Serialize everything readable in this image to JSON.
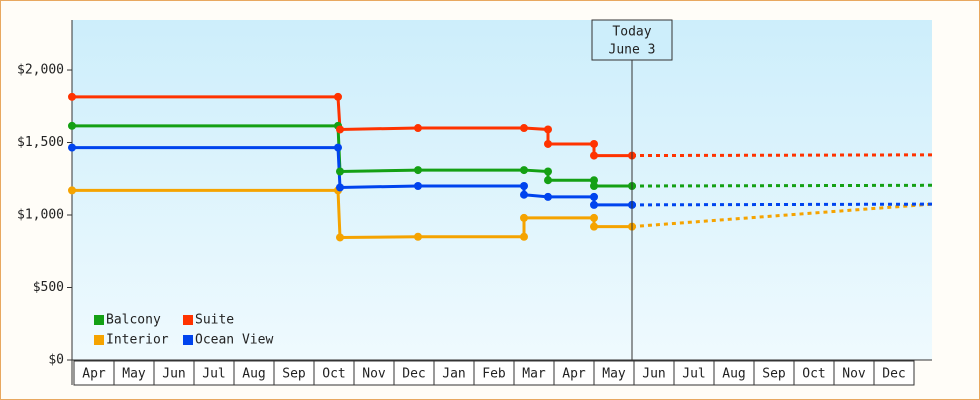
{
  "chart_data": {
    "type": "step-line",
    "categories": [
      "Apr",
      "May",
      "Jun",
      "Jul",
      "Aug",
      "Sep",
      "Oct",
      "Nov",
      "Dec",
      "Jan",
      "Feb",
      "Mar",
      "Apr",
      "May",
      "Jun",
      "Jul",
      "Aug",
      "Sep",
      "Oct",
      "Nov",
      "Dec"
    ],
    "xlim": [
      0,
      21.5
    ],
    "ylim": [
      0,
      2345
    ],
    "yticks": [
      {
        "value": 0,
        "label": "$0"
      },
      {
        "value": 500,
        "label": "$500"
      },
      {
        "value": 1000,
        "label": "$1,000"
      },
      {
        "value": 1500,
        "label": "$1,500"
      },
      {
        "value": 2000,
        "label": "$2,000"
      }
    ],
    "series": [
      {
        "name": "Balcony",
        "color": "#14a014",
        "x": [
          0,
          6.65,
          6.7,
          8.65,
          11.3,
          11.9,
          11.9,
          13.05,
          13.05,
          14
        ],
        "values": [
          1615,
          1615,
          1300,
          1310,
          1310,
          1300,
          1240,
          1240,
          1200,
          1200
        ],
        "forecast": {
          "x": [
            14,
            21.5
          ],
          "values": [
            1200,
            1205
          ]
        }
      },
      {
        "name": "Suite",
        "color": "#ff3300",
        "x": [
          0,
          6.65,
          6.7,
          8.65,
          11.3,
          11.9,
          11.9,
          13.05,
          13.05,
          14
        ],
        "values": [
          1815,
          1815,
          1590,
          1600,
          1600,
          1590,
          1490,
          1490,
          1410,
          1410
        ],
        "forecast": {
          "x": [
            14,
            21.5
          ],
          "values": [
            1410,
            1415
          ]
        }
      },
      {
        "name": "Interior",
        "color": "#f5a300",
        "x": [
          0,
          6.65,
          6.7,
          8.65,
          11.3,
          11.3,
          13.05,
          13.05,
          14
        ],
        "values": [
          1170,
          1170,
          845,
          850,
          850,
          980,
          980,
          920,
          920
        ],
        "forecast": {
          "x": [
            14,
            21.5
          ],
          "values": [
            920,
            1075
          ]
        }
      },
      {
        "name": "Ocean View",
        "color": "#0044ee",
        "x": [
          0,
          6.65,
          6.7,
          8.65,
          11.3,
          11.3,
          11.9,
          13.05,
          13.05,
          14
        ],
        "values": [
          1465,
          1465,
          1190,
          1200,
          1200,
          1140,
          1125,
          1125,
          1070,
          1070
        ],
        "forecast": {
          "x": [
            14,
            21.5
          ],
          "values": [
            1070,
            1075
          ]
        }
      }
    ],
    "annotation": {
      "x": 14,
      "label": [
        "Today",
        "June 3"
      ]
    },
    "legend": "lower left"
  }
}
